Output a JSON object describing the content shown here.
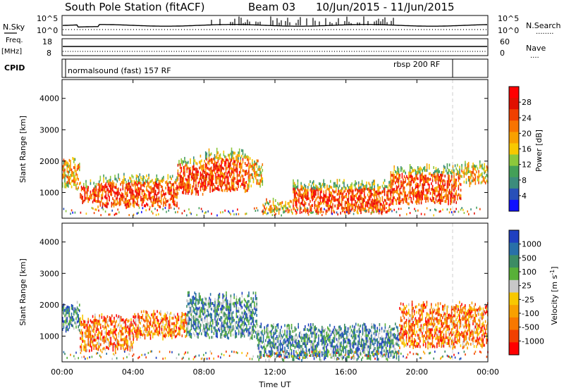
{
  "header": {
    "station": "South Pole Station (fitACF)",
    "beam": "Beam 03",
    "date_range": "10/Jun/2015 - 11/Jun/2015"
  },
  "panels": {
    "nsky": {
      "left_label": "N.Sky",
      "left_ticks": [
        "10^5",
        "10^0"
      ],
      "right_ticks": [
        "10^5",
        "10^0"
      ],
      "right_label": "N.Search",
      "right_legend": "........"
    },
    "freq": {
      "left_label_line1": "Freq.",
      "left_label_line2": "[MHz]",
      "left_ticks": [
        "18",
        "8"
      ],
      "right_ticks": [
        "60",
        "0"
      ],
      "right_label": "Nave",
      "right_legend": "...."
    },
    "cpid": {
      "label": "CPID",
      "segments": [
        "normalsound (fast) 157 RF",
        "rbsp 200 RF"
      ]
    }
  },
  "x_axis": {
    "label": "Time UT",
    "ticks": [
      "00:00",
      "04:00",
      "08:00",
      "12:00",
      "16:00",
      "20:00",
      "00:00"
    ]
  },
  "chart_data": [
    {
      "type": "heatmap",
      "parameter": "Power",
      "xlabel": "Time UT",
      "ylabel": "Slant Range [km]",
      "xlim": [
        0,
        24
      ],
      "ylim": [
        180,
        4600
      ],
      "y_ticks": [
        "1000",
        "2000",
        "3000",
        "4000"
      ],
      "colorbar": {
        "label": "Power [dB]",
        "ticks": [
          "4",
          "8",
          "12",
          "16",
          "20",
          "24",
          "28"
        ],
        "colors": [
          "#1010ff",
          "#2850b8",
          "#3c8c7c",
          "#44a058",
          "#8cc83c",
          "#f8c800",
          "#f8a000",
          "#f87400",
          "#f04000",
          "#e01000",
          "#ff0000"
        ]
      },
      "echo_regions": [
        {
          "t_start": 0.0,
          "t_end": 1.0,
          "r_low": 1200,
          "r_high": 2000,
          "level": "medium"
        },
        {
          "t_start": 1.0,
          "t_end": 2.0,
          "r_low": 750,
          "r_high": 1300,
          "level": "high"
        },
        {
          "t_start": 2.0,
          "t_end": 6.5,
          "r_low": 600,
          "r_high": 1500,
          "level": "high"
        },
        {
          "t_start": 6.5,
          "t_end": 8.0,
          "r_low": 1000,
          "r_high": 2100,
          "level": "high"
        },
        {
          "t_start": 8.0,
          "t_end": 10.5,
          "r_low": 1100,
          "r_high": 2300,
          "level": "high"
        },
        {
          "t_start": 10.5,
          "t_end": 11.3,
          "r_low": 1300,
          "r_high": 2000,
          "level": "medium"
        },
        {
          "t_start": 11.3,
          "t_end": 13.0,
          "r_low": 400,
          "r_high": 700,
          "level": "medium"
        },
        {
          "t_start": 13.0,
          "t_end": 18.5,
          "r_low": 400,
          "r_high": 1300,
          "level": "high"
        },
        {
          "t_start": 18.5,
          "t_end": 22.5,
          "r_low": 700,
          "r_high": 1800,
          "level": "high"
        },
        {
          "t_start": 22.5,
          "t_end": 24.0,
          "r_low": 1300,
          "r_high": 1900,
          "level": "medium"
        }
      ]
    },
    {
      "type": "heatmap",
      "parameter": "Velocity",
      "xlabel": "Time UT",
      "ylabel": "Slant Range [km]",
      "xlim": [
        0,
        24
      ],
      "ylim": [
        180,
        4600
      ],
      "y_ticks": [
        "1000",
        "2000",
        "3000",
        "4000"
      ],
      "colorbar": {
        "label": "Velocity [m s^-1]",
        "ticks": [
          "1000",
          "500",
          "100",
          "25",
          "-25",
          "-100",
          "-500",
          "-1000"
        ],
        "colors": [
          "#2040c0",
          "#2870a8",
          "#3c8c64",
          "#58b038",
          "#c8c8c8",
          "#f8c800",
          "#f8a000",
          "#f87800",
          "#f04000",
          "#ff0000"
        ]
      },
      "echo_regions": [
        {
          "t_start": 0.0,
          "t_end": 1.0,
          "r_low": 1200,
          "r_high": 2000,
          "level": "negative"
        },
        {
          "t_start": 1.0,
          "t_end": 4.0,
          "r_low": 600,
          "r_high": 1600,
          "level": "positive"
        },
        {
          "t_start": 4.0,
          "t_end": 7.0,
          "r_low": 1000,
          "r_high": 1700,
          "level": "positive"
        },
        {
          "t_start": 7.0,
          "t_end": 11.0,
          "r_low": 1000,
          "r_high": 2300,
          "level": "negative"
        },
        {
          "t_start": 11.0,
          "t_end": 19.0,
          "r_low": 300,
          "r_high": 1300,
          "level": "negative"
        },
        {
          "t_start": 19.0,
          "t_end": 24.0,
          "r_low": 700,
          "r_high": 2000,
          "level": "positive"
        }
      ]
    }
  ]
}
